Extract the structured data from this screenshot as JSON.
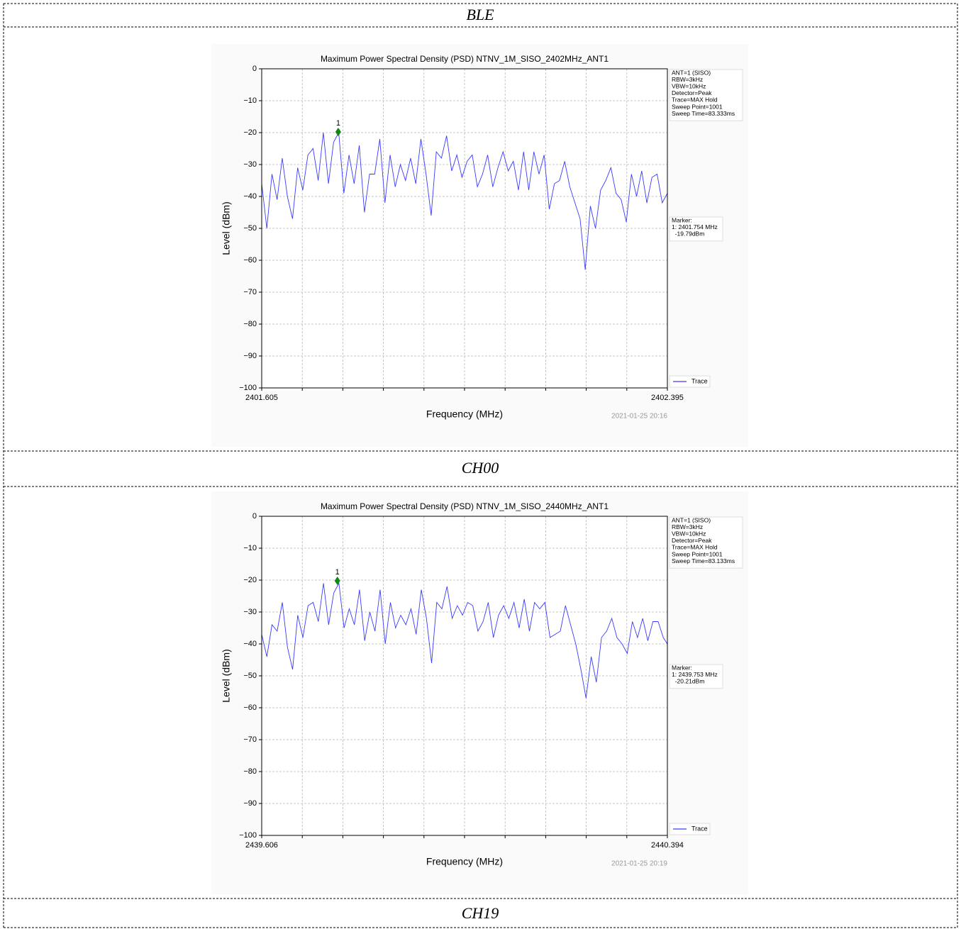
{
  "sections": [
    "BLE",
    "CH00",
    "CH19"
  ],
  "chart_data": [
    {
      "type": "line",
      "title": "Maximum Power Spectral Density (PSD) NTNV_1M_SISO_2402MHz_ANT1",
      "xlabel": "Frequency (MHz)",
      "ylabel": "Level (dBm)",
      "x": [
        2401.605,
        2401.615,
        2401.625,
        2401.635,
        2401.645,
        2401.655,
        2401.665,
        2401.675,
        2401.685,
        2401.695,
        2401.705,
        2401.715,
        2401.725,
        2401.735,
        2401.745,
        2401.755,
        2401.765,
        2401.775,
        2401.785,
        2401.795,
        2401.805,
        2401.815,
        2401.825,
        2401.835,
        2401.845,
        2401.855,
        2401.865,
        2401.875,
        2401.885,
        2401.895,
        2401.905,
        2401.915,
        2401.925,
        2401.935,
        2401.945,
        2401.955,
        2401.965,
        2401.975,
        2401.985,
        2401.995,
        2402.005,
        2402.015,
        2402.025,
        2402.035,
        2402.045,
        2402.055,
        2402.065,
        2402.075,
        2402.085,
        2402.095,
        2402.105,
        2402.115,
        2402.125,
        2402.135,
        2402.145,
        2402.155,
        2402.165,
        2402.175,
        2402.185,
        2402.195,
        2402.205,
        2402.215,
        2402.225,
        2402.235,
        2402.245,
        2402.255,
        2402.265,
        2402.275,
        2402.285,
        2402.295,
        2402.305,
        2402.315,
        2402.325,
        2402.335,
        2402.345,
        2402.355,
        2402.365,
        2402.375,
        2402.385,
        2402.395
      ],
      "series": [
        {
          "name": "Trace",
          "color": "#3a3aff",
          "values": [
            -36,
            -50,
            -33,
            -41,
            -28,
            -40,
            -47,
            -31,
            -38,
            -27,
            -25,
            -35,
            -20,
            -36,
            -23,
            -20,
            -39,
            -27,
            -36,
            -24,
            -45,
            -33,
            -33,
            -22,
            -42,
            -27,
            -37,
            -30,
            -35,
            -28,
            -36,
            -22,
            -33,
            -46,
            -26,
            -28,
            -21,
            -32,
            -27,
            -34,
            -29,
            -27,
            -37,
            -33,
            -27,
            -37,
            -31,
            -26,
            -32,
            -29,
            -38,
            -26,
            -38,
            -26,
            -33,
            -27,
            -44,
            -36,
            -35,
            -29,
            -37,
            -42,
            -47,
            -63,
            -43,
            -50,
            -38,
            -35,
            -31,
            -39,
            -41,
            -48,
            -33,
            -40,
            -32,
            -42,
            -34,
            -33,
            -42,
            -39
          ]
        }
      ],
      "xlim": [
        2401.605,
        2402.395
      ],
      "ylim": [
        -100,
        0
      ],
      "xticks": [
        2401.605,
        2402.395
      ],
      "x_minor_ticks": [
        2401.684,
        2401.763,
        2401.842,
        2401.921,
        2402.0,
        2402.079,
        2402.158,
        2402.237,
        2402.316
      ],
      "yticks": [
        0,
        {
          "value": -10,
          "label": "−10"
        },
        {
          "value": -20,
          "label": "−20"
        },
        {
          "value": -30,
          "label": "−30"
        },
        {
          "value": -40,
          "label": "−40"
        },
        {
          "value": -50,
          "label": "−50"
        },
        {
          "value": -60,
          "label": "−60"
        },
        {
          "value": -70,
          "label": "−70"
        },
        {
          "value": -80,
          "label": "−80"
        },
        {
          "value": -90,
          "label": "−90"
        },
        {
          "value": -100,
          "label": "−100"
        }
      ],
      "grid": true,
      "legend": "right",
      "settings": [
        "ANT=1 (SISO)",
        "RBW=3kHz",
        "VBW=10kHz",
        "Detector=Peak",
        "Trace=MAX Hold",
        "Sweep Point=1001",
        "Sweep Time=83.333ms"
      ],
      "marker": {
        "label": "1",
        "x": 2401.754,
        "y": -19.79,
        "color": "#118811",
        "lines": [
          "Marker:",
          "1: 2401.754 MHz",
          "  -19.79dBm"
        ]
      },
      "timestamp": "2021-01-25 20:16"
    },
    {
      "type": "line",
      "title": "Maximum Power Spectral Density (PSD) NTNV_1M_SISO_2440MHz_ANT1",
      "xlabel": "Frequency (MHz)",
      "ylabel": "Level (dBm)",
      "x": [
        2439.606,
        2439.616,
        2439.626,
        2439.636,
        2439.646,
        2439.656,
        2439.666,
        2439.676,
        2439.686,
        2439.696,
        2439.706,
        2439.716,
        2439.726,
        2439.736,
        2439.746,
        2439.756,
        2439.766,
        2439.776,
        2439.786,
        2439.796,
        2439.806,
        2439.816,
        2439.826,
        2439.836,
        2439.846,
        2439.856,
        2439.866,
        2439.876,
        2439.886,
        2439.896,
        2439.906,
        2439.916,
        2439.926,
        2439.936,
        2439.946,
        2439.956,
        2439.966,
        2439.976,
        2439.986,
        2439.996,
        2440.006,
        2440.016,
        2440.026,
        2440.036,
        2440.046,
        2440.056,
        2440.066,
        2440.076,
        2440.086,
        2440.096,
        2440.106,
        2440.116,
        2440.126,
        2440.136,
        2440.146,
        2440.156,
        2440.166,
        2440.176,
        2440.186,
        2440.196,
        2440.206,
        2440.216,
        2440.226,
        2440.236,
        2440.246,
        2440.256,
        2440.266,
        2440.276,
        2440.286,
        2440.296,
        2440.306,
        2440.316,
        2440.326,
        2440.336,
        2440.346,
        2440.356,
        2440.366,
        2440.376,
        2440.386,
        2440.394
      ],
      "series": [
        {
          "name": "Trace",
          "color": "#3a3aff",
          "values": [
            -37,
            -44,
            -34,
            -36,
            -27,
            -41,
            -48,
            -31,
            -38,
            -28,
            -27,
            -33,
            -21,
            -34,
            -24,
            -21,
            -35,
            -29,
            -34,
            -23,
            -39,
            -30,
            -36,
            -23,
            -40,
            -27,
            -35,
            -31,
            -34,
            -29,
            -37,
            -23,
            -32,
            -46,
            -27,
            -29,
            -22,
            -32,
            -28,
            -31,
            -27,
            -28,
            -36,
            -33,
            -27,
            -38,
            -31,
            -28,
            -32,
            -27,
            -35,
            -26,
            -36,
            -27,
            -29,
            -27,
            -38,
            -37,
            -36,
            -28,
            -34,
            -40,
            -48,
            -57,
            -44,
            -52,
            -38,
            -36,
            -32,
            -38,
            -40,
            -43,
            -33,
            -38,
            -32,
            -39,
            -33,
            -33,
            -38,
            -40
          ]
        }
      ],
      "xlim": [
        2439.606,
        2440.394
      ],
      "ylim": [
        -100,
        0
      ],
      "xticks": [
        2439.606,
        2440.394
      ],
      "x_minor_ticks": [
        2439.6848,
        2439.7636,
        2439.8424,
        2439.9212,
        2440.0,
        2440.0788,
        2440.1576,
        2440.2364,
        2440.3152
      ],
      "yticks": [
        0,
        {
          "value": -10,
          "label": "−10"
        },
        {
          "value": -20,
          "label": "−20"
        },
        {
          "value": -30,
          "label": "−30"
        },
        {
          "value": -40,
          "label": "−40"
        },
        {
          "value": -50,
          "label": "−50"
        },
        {
          "value": -60,
          "label": "−60"
        },
        {
          "value": -70,
          "label": "−70"
        },
        {
          "value": -80,
          "label": "−80"
        },
        {
          "value": -90,
          "label": "−90"
        },
        {
          "value": -100,
          "label": "−100"
        }
      ],
      "grid": true,
      "legend": "right",
      "settings": [
        "ANT=1 (SISO)",
        "RBW=3kHz",
        "VBW=10kHz",
        "Detector=Peak",
        "Trace=MAX Hold",
        "Sweep Point=1001",
        "Sweep Time=83.133ms"
      ],
      "marker": {
        "label": "1",
        "x": 2439.753,
        "y": -20.21,
        "color": "#118811",
        "lines": [
          "Marker:",
          "1: 2439.753 MHz",
          "  -20.21dBm"
        ]
      },
      "timestamp": "2021-01-25 20:19"
    }
  ]
}
